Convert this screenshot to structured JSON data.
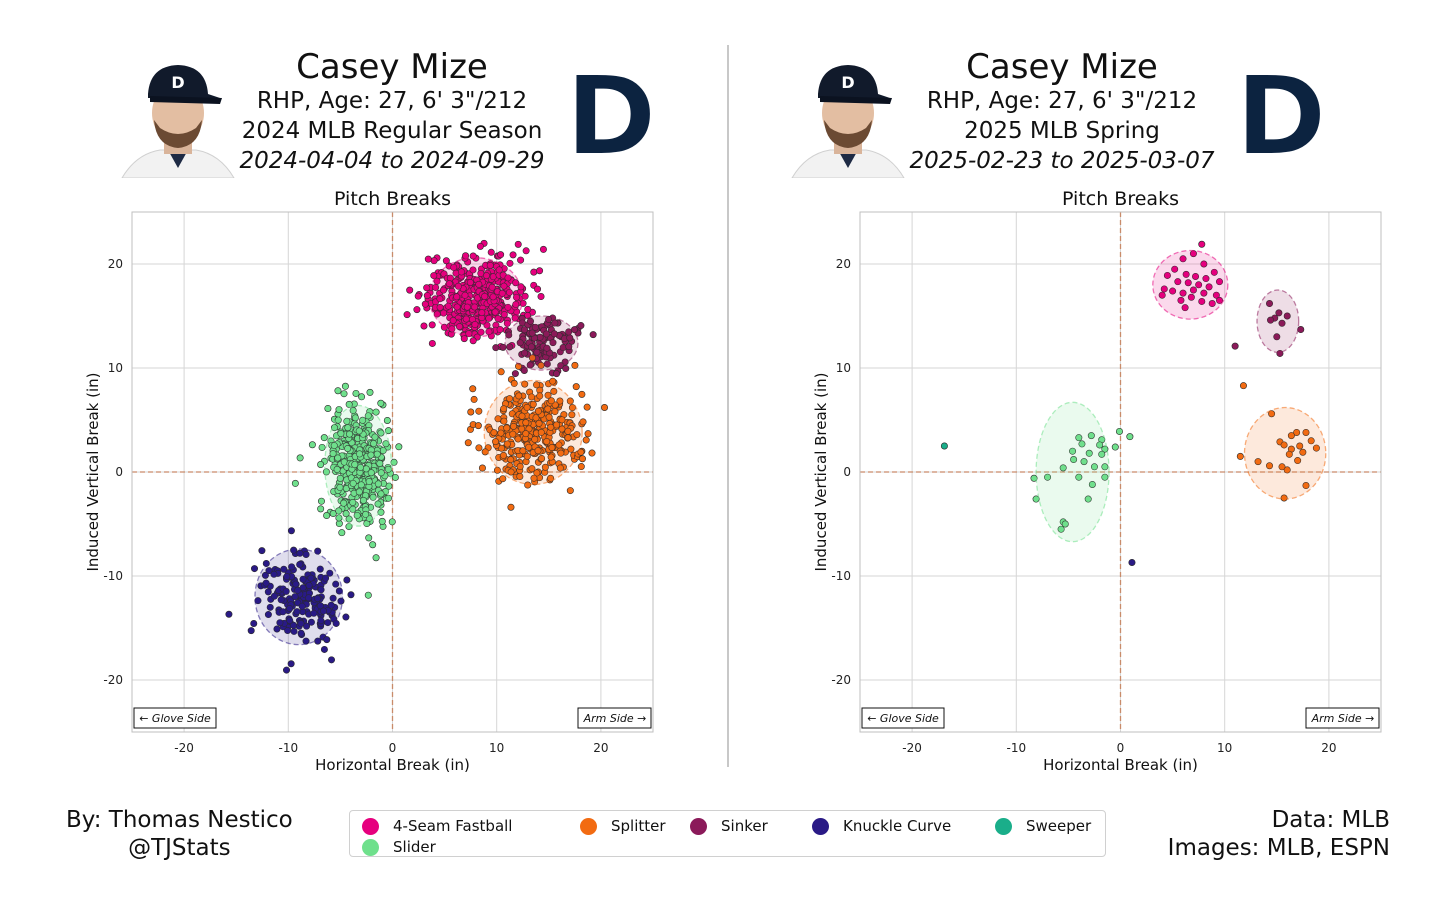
{
  "panels": [
    {
      "title_name": "Casey Mize",
      "bio": "RHP, Age: 27, 6' 3\"/212",
      "season": "2024 MLB Regular Season",
      "dates": "2024-04-04 to 2024-09-29"
    },
    {
      "title_name": "Casey Mize",
      "bio": "RHP, Age: 27, 6' 3\"/212",
      "season": "2025 MLB Spring",
      "dates": "2025-02-23 to 2025-03-07"
    }
  ],
  "footer": {
    "by_line1": "By: Thomas Nestico",
    "by_line2": "@TJStats",
    "data_line1": "Data: MLB",
    "data_line2": "Images: MLB, ESPN"
  },
  "legend": [
    {
      "label": "4-Seam Fastball",
      "color": "#e6007e"
    },
    {
      "label": "Splitter",
      "color": "#f26b12"
    },
    {
      "label": "Sinker",
      "color": "#8b1a5a"
    },
    {
      "label": "Knuckle Curve",
      "color": "#2a1a86"
    },
    {
      "label": "Sweeper",
      "color": "#1aae8a"
    },
    {
      "label": "Slider",
      "color": "#6fe08c"
    }
  ],
  "chart_data": [
    {
      "type": "scatter",
      "title": "Pitch Breaks",
      "xlabel": "Horizontal Break (in)",
      "ylabel": "Induced Vertical Break (in)",
      "xlim": [
        -25,
        25
      ],
      "ylim": [
        -25,
        25
      ],
      "xticks": [
        -20,
        -10,
        0,
        10,
        20
      ],
      "yticks": [
        -20,
        -10,
        0,
        10,
        20
      ],
      "grid": true,
      "annotations": [
        "← Glove Side",
        "Arm Side →"
      ],
      "series": [
        {
          "name": "4-Seam Fastball",
          "color": "#e6007e",
          "center": [
            8.0,
            16.8
          ],
          "spread": [
            2.4,
            1.9
          ],
          "count": 420,
          "ellipse": {
            "rx": 4.5,
            "ry": 3.8
          }
        },
        {
          "name": "Sinker",
          "color": "#8b1a5a",
          "center": [
            14.3,
            12.4
          ],
          "spread": [
            1.6,
            1.3
          ],
          "count": 120,
          "ellipse": {
            "rx": 3.5,
            "ry": 2.6
          }
        },
        {
          "name": "Splitter",
          "color": "#f26b12",
          "center": [
            13.5,
            3.8
          ],
          "spread": [
            2.4,
            2.4
          ],
          "count": 350,
          "ellipse": {
            "rx": 4.7,
            "ry": 5.0
          }
        },
        {
          "name": "Slider",
          "color": "#6fe08c",
          "center": [
            -3.3,
            0.6
          ],
          "spread": [
            1.5,
            2.9
          ],
          "count": 400,
          "ellipse": {
            "rx": 3.2,
            "ry": 5.8
          }
        },
        {
          "name": "Knuckle Curve",
          "color": "#2a1a86",
          "center": [
            -9.0,
            -12.0
          ],
          "spread": [
            2.0,
            2.1
          ],
          "count": 190,
          "ellipse": {
            "rx": 4.2,
            "ry": 4.6
          }
        }
      ]
    },
    {
      "type": "scatter",
      "title": "Pitch Breaks",
      "xlabel": "Horizontal Break (in)",
      "ylabel": "Induced Vertical Break (in)",
      "xlim": [
        -25,
        25
      ],
      "ylim": [
        -25,
        25
      ],
      "xticks": [
        -20,
        -10,
        0,
        10,
        20
      ],
      "yticks": [
        -20,
        -10,
        0,
        10,
        20
      ],
      "grid": true,
      "annotations": [
        "← Glove Side",
        "Arm Side →"
      ],
      "series": [
        {
          "name": "4-Seam Fastball",
          "color": "#e6007e",
          "ellipse": {
            "cx": 6.7,
            "cy": 18.0,
            "rx": 3.6,
            "ry": 3.3
          },
          "points": [
            [
              6.0,
              20.5
            ],
            [
              7.0,
              21.0
            ],
            [
              7.8,
              21.9
            ],
            [
              8.0,
              20.0
            ],
            [
              5.2,
              19.5
            ],
            [
              6.3,
              19.0
            ],
            [
              7.2,
              18.8
            ],
            [
              8.2,
              18.6
            ],
            [
              9.0,
              19.2
            ],
            [
              4.5,
              18.9
            ],
            [
              5.5,
              18.3
            ],
            [
              6.5,
              18.2
            ],
            [
              7.5,
              18.0
            ],
            [
              8.5,
              17.8
            ],
            [
              9.5,
              18.3
            ],
            [
              4.2,
              17.6
            ],
            [
              5.0,
              17.4
            ],
            [
              6.0,
              17.2
            ],
            [
              7.0,
              17.5
            ],
            [
              8.0,
              17.2
            ],
            [
              9.2,
              17.0
            ],
            [
              4.0,
              17.0
            ],
            [
              5.8,
              16.5
            ],
            [
              6.8,
              16.8
            ],
            [
              7.8,
              16.4
            ],
            [
              8.8,
              16.2
            ],
            [
              9.5,
              16.5
            ],
            [
              6.2,
              15.8
            ]
          ]
        },
        {
          "name": "Sinker",
          "color": "#8b1a5a",
          "ellipse": {
            "cx": 15.1,
            "cy": 14.5,
            "rx": 2.0,
            "ry": 3.0
          },
          "points": [
            [
              14.3,
              16.2
            ],
            [
              15.2,
              15.3
            ],
            [
              14.8,
              14.8
            ],
            [
              14.4,
              14.6
            ],
            [
              15.5,
              14.3
            ],
            [
              16.0,
              15.0
            ],
            [
              17.3,
              13.7
            ],
            [
              15.0,
              13.0
            ],
            [
              15.3,
              11.4
            ],
            [
              11.0,
              12.1
            ]
          ]
        },
        {
          "name": "Splitter",
          "color": "#f26b12",
          "ellipse": {
            "cx": 15.8,
            "cy": 1.8,
            "rx": 3.9,
            "ry": 4.4
          },
          "points": [
            [
              11.8,
              8.3
            ],
            [
              14.5,
              5.6
            ],
            [
              16.9,
              3.8
            ],
            [
              17.8,
              3.8
            ],
            [
              16.4,
              3.5
            ],
            [
              18.3,
              3.0
            ],
            [
              15.3,
              2.9
            ],
            [
              16.4,
              2.2
            ],
            [
              17.2,
              2.5
            ],
            [
              15.7,
              2.6
            ],
            [
              18.8,
              2.3
            ],
            [
              17.5,
              1.9
            ],
            [
              16.2,
              1.7
            ],
            [
              17.0,
              1.1
            ],
            [
              11.5,
              1.5
            ],
            [
              13.2,
              1.0
            ],
            [
              14.3,
              0.6
            ],
            [
              15.5,
              0.5
            ],
            [
              16.0,
              0.2
            ],
            [
              17.8,
              -1.3
            ],
            [
              15.7,
              -2.5
            ]
          ]
        },
        {
          "name": "Slider",
          "color": "#6fe08c",
          "ellipse": {
            "cx": -4.6,
            "cy": 0.0,
            "rx": 3.5,
            "ry": 6.7
          },
          "points": [
            [
              -2.8,
              3.5
            ],
            [
              -4.0,
              3.3
            ],
            [
              -1.8,
              3.1
            ],
            [
              0.9,
              3.4
            ],
            [
              -0.1,
              3.9
            ],
            [
              -3.7,
              2.7
            ],
            [
              -2.0,
              2.6
            ],
            [
              -1.5,
              2.2
            ],
            [
              -0.5,
              2.4
            ],
            [
              -4.6,
              2.0
            ],
            [
              -3.0,
              1.8
            ],
            [
              -1.8,
              1.7
            ],
            [
              -4.5,
              1.2
            ],
            [
              -3.5,
              1.0
            ],
            [
              -2.5,
              0.5
            ],
            [
              -1.5,
              0.5
            ],
            [
              -5.5,
              0.4
            ],
            [
              -7.0,
              -0.5
            ],
            [
              -4.0,
              -0.5
            ],
            [
              -1.5,
              -0.5
            ],
            [
              -8.3,
              -0.6
            ],
            [
              -8.1,
              -2.6
            ],
            [
              -2.7,
              -1.2
            ],
            [
              -3.1,
              -2.6
            ],
            [
              -5.5,
              -4.8
            ],
            [
              -5.3,
              -5.0
            ],
            [
              -5.7,
              -5.5
            ]
          ]
        },
        {
          "name": "Knuckle Curve",
          "color": "#2a1a86",
          "points": [
            [
              1.1,
              -8.7
            ]
          ]
        },
        {
          "name": "Sweeper",
          "color": "#1aae8a",
          "points": [
            [
              -16.9,
              2.5
            ]
          ]
        }
      ]
    }
  ]
}
